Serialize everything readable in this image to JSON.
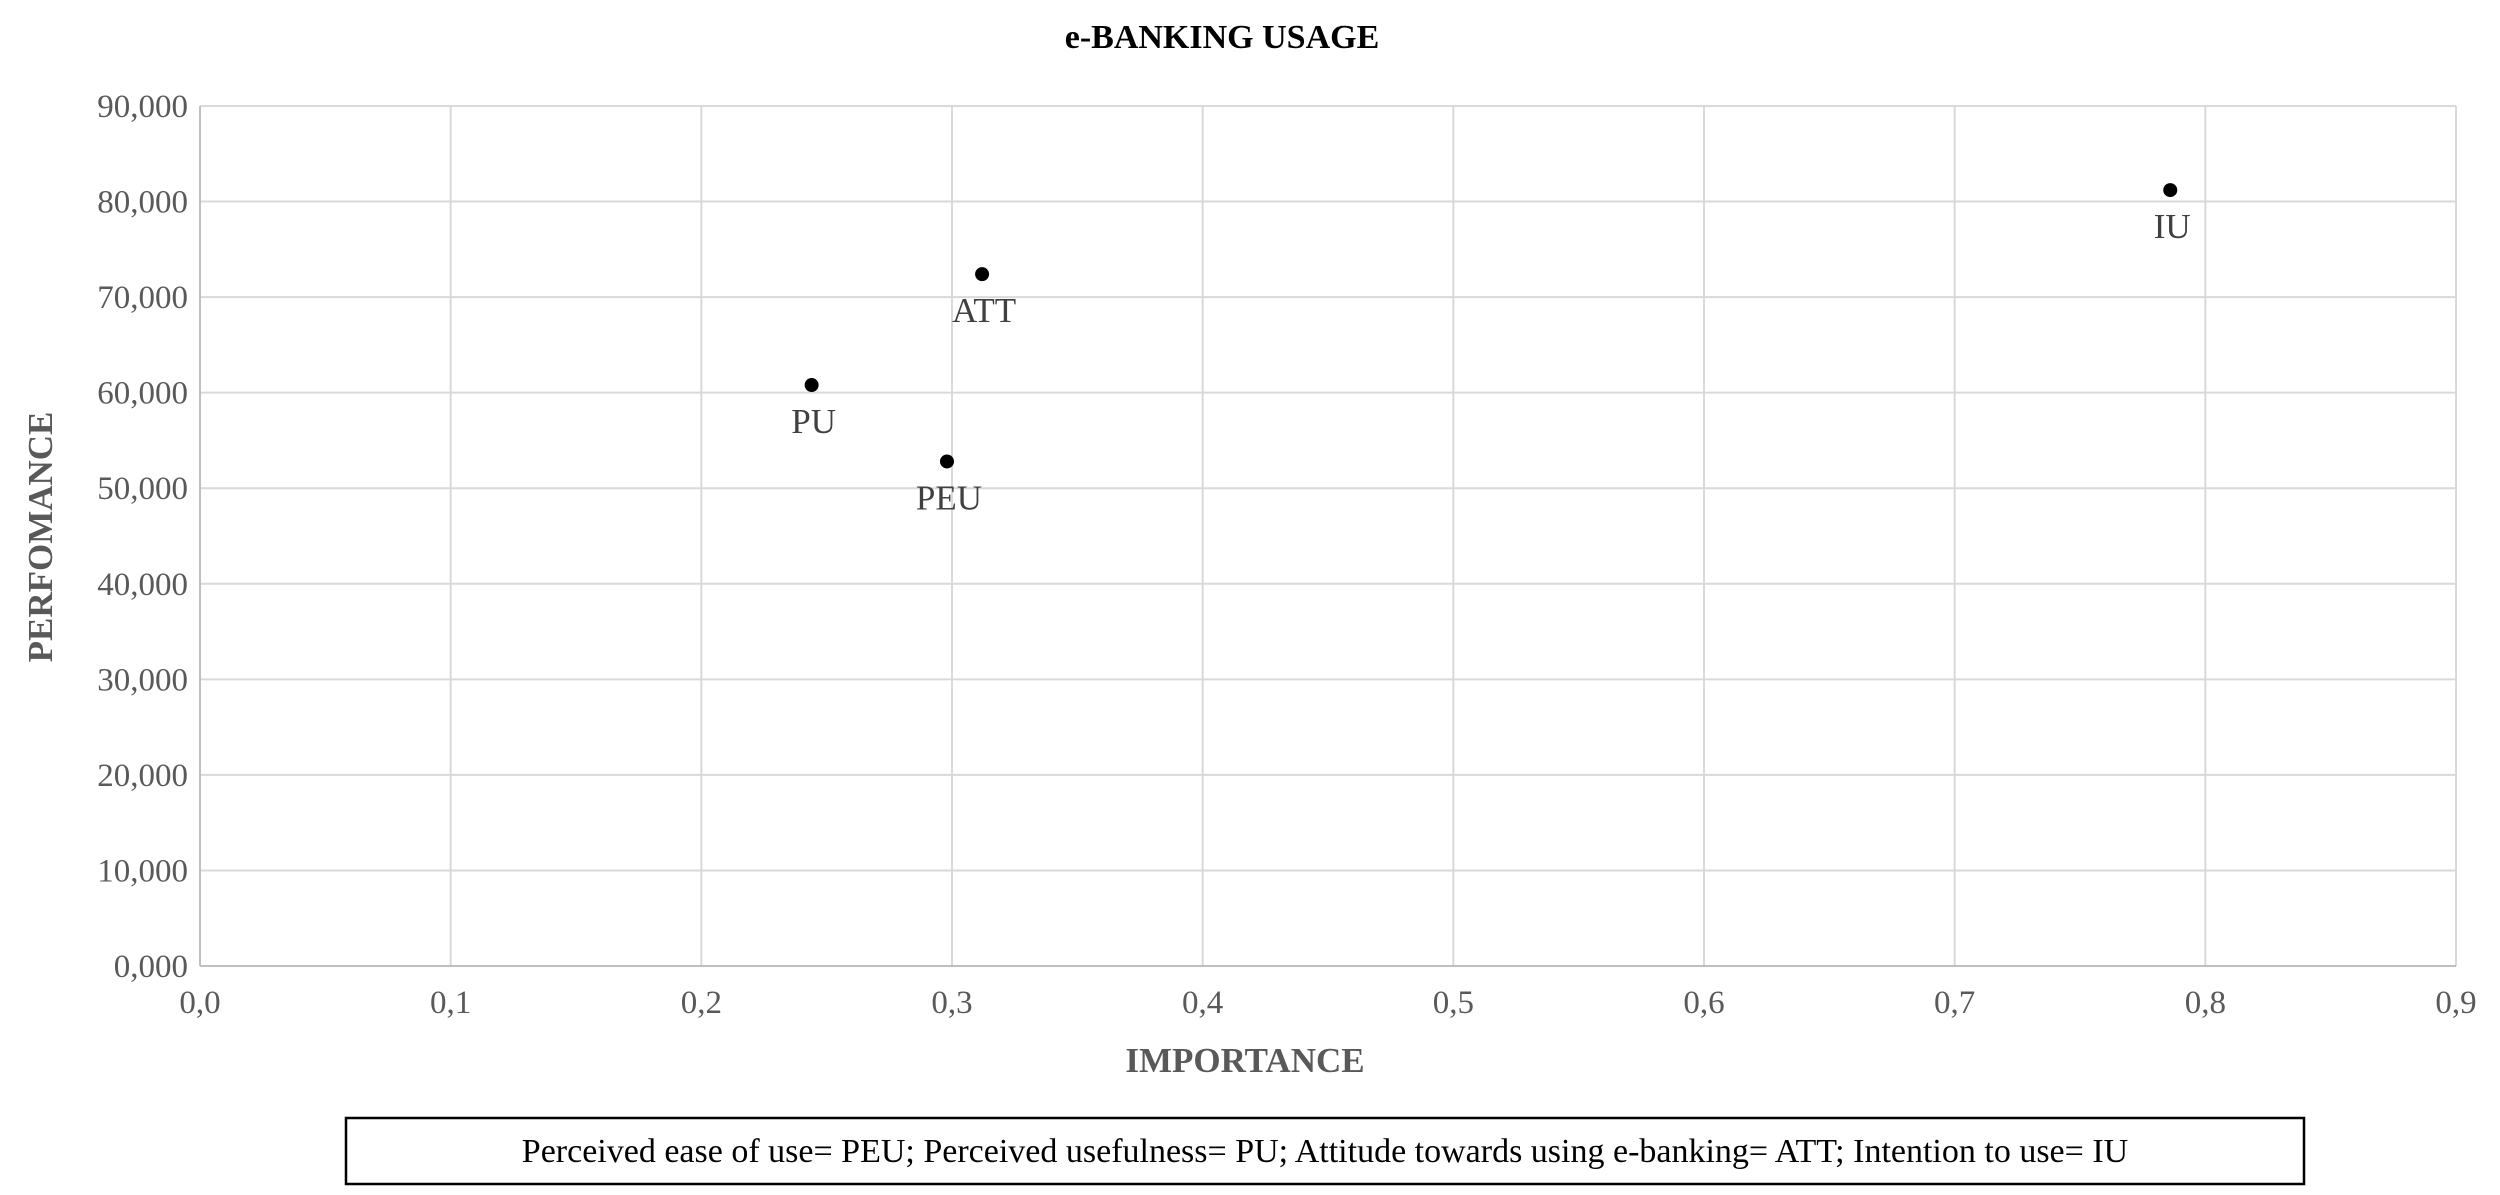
{
  "chart_data": {
    "type": "scatter",
    "title": "e-BANKING USAGE",
    "xlabel": "IMPORTANCE",
    "ylabel": "PERFOMANCE",
    "xlim": [
      0,
      0.9
    ],
    "ylim": [
      0,
      90
    ],
    "x_ticks": [
      0,
      0.1,
      0.2,
      0.3,
      0.4,
      0.5,
      0.6,
      0.7,
      0.8,
      0.9
    ],
    "x_tick_labels": [
      "0,0",
      "0,1",
      "0,2",
      "0,3",
      "0,4",
      "0,5",
      "0,6",
      "0,7",
      "0,8",
      "0,9"
    ],
    "y_ticks": [
      0,
      10,
      20,
      30,
      40,
      50,
      60,
      70,
      80,
      90
    ],
    "y_tick_labels": [
      "0,000",
      "10,000",
      "20,000",
      "30,000",
      "40,000",
      "50,000",
      "60,000",
      "70,000",
      "80,000",
      "90,000"
    ],
    "grid": true,
    "legend": "none",
    "marker_color": "#000000",
    "points": [
      {
        "label": "PU",
        "x": 0.244,
        "y": 60.8
      },
      {
        "label": "PEU",
        "x": 0.298,
        "y": 52.8
      },
      {
        "label": "ATT",
        "x": 0.312,
        "y": 72.4
      },
      {
        "label": "IU",
        "x": 0.786,
        "y": 81.2
      }
    ],
    "footnote": "Perceived ease of use= PEU; Perceived usefulness= PU; Attitude towards using e-banking= ATT; Intention to use= IU"
  }
}
